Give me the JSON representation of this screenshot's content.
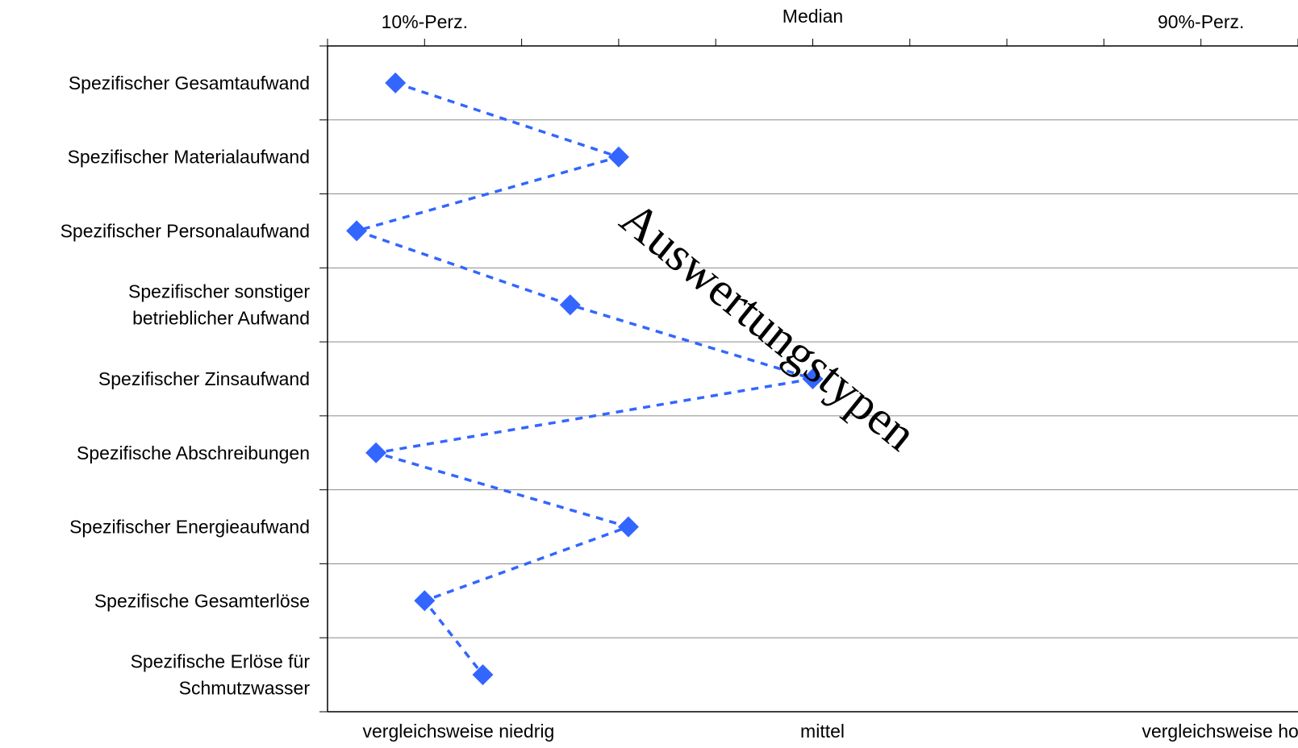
{
  "chart_data": {
    "type": "line",
    "top_axis_labels": [
      {
        "label": "10%-Perz.",
        "value": 10
      },
      {
        "label": "Median",
        "value": 50
      },
      {
        "label": "90%-Perz.",
        "value": 90
      }
    ],
    "bottom_axis_labels": [
      {
        "label": "vergleichsweise niedrig",
        "value": 13.5
      },
      {
        "label": "mittel",
        "value": 51
      },
      {
        "label": "vergleichsweise hoch",
        "value": 93
      }
    ],
    "xlim": [
      0,
      100
    ],
    "x_ticks": [
      0,
      10,
      20,
      30,
      40,
      50,
      60,
      70,
      80,
      90,
      100
    ],
    "categories": [
      [
        "Spezifischer Gesamtaufwand"
      ],
      [
        "Spezifischer Materialaufwand"
      ],
      [
        "Spezifischer Personalaufwand"
      ],
      [
        "Spezifischer sonstiger",
        "betrieblicher Aufwand"
      ],
      [
        "Spezifischer Zinsaufwand"
      ],
      [
        "Spezifische Abschreibungen"
      ],
      [
        "Spezifischer Energieaufwand"
      ],
      [
        "Spezifische Gesamterlöse"
      ],
      [
        "Spezifische Erlöse für",
        "Schmutzwasser"
      ]
    ],
    "series": [
      {
        "values": [
          7,
          30,
          3,
          25,
          50,
          5,
          31,
          10,
          16
        ],
        "color": "#3366FF",
        "line_style": "dotted",
        "marker": "diamond"
      }
    ],
    "grid": true,
    "watermark": "Auswertungstypen"
  }
}
